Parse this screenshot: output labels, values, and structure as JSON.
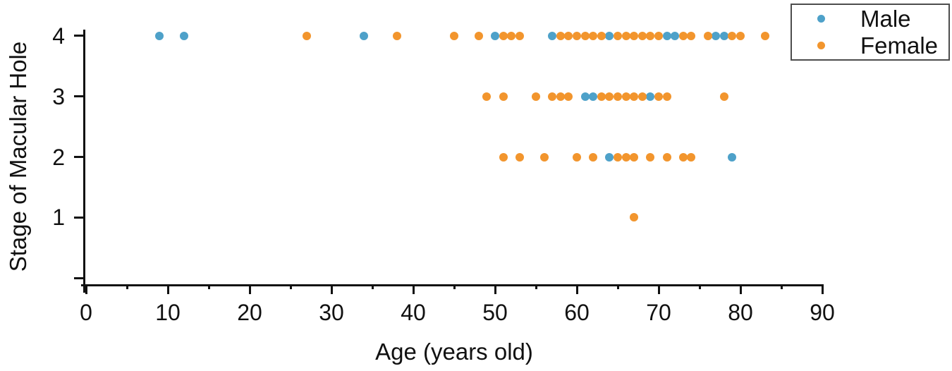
{
  "chart_data": {
    "type": "scatter",
    "title": "",
    "xlabel": "Age (years old)",
    "ylabel": "Stage of Macular Hole",
    "xlim": [
      0,
      90
    ],
    "ylim": [
      -0.1,
      4.1
    ],
    "xticks_major": [
      0,
      10,
      20,
      30,
      40,
      50,
      60,
      70,
      80,
      90
    ],
    "xticks_minor": [
      5,
      15,
      25,
      35,
      45,
      55,
      65,
      75,
      85
    ],
    "yticks": [
      1,
      2,
      3,
      4
    ],
    "yticks_unlabeled": [
      0
    ],
    "grid": false,
    "legend_position": "top-right",
    "axis_color": "#111111",
    "series": [
      {
        "name": "Male",
        "color": "#4EA1C9",
        "points": [
          [
            9,
            4
          ],
          [
            12,
            4
          ],
          [
            34,
            4
          ],
          [
            50,
            4
          ],
          [
            57,
            4
          ],
          [
            64,
            4
          ],
          [
            71,
            4
          ],
          [
            72,
            4
          ],
          [
            77,
            4
          ],
          [
            78,
            4
          ],
          [
            61,
            3
          ],
          [
            62,
            3
          ],
          [
            69,
            3
          ],
          [
            64,
            2
          ],
          [
            79,
            2
          ]
        ]
      },
      {
        "name": "Female",
        "color": "#F2952D",
        "points": [
          [
            27,
            4
          ],
          [
            38,
            4
          ],
          [
            45,
            4
          ],
          [
            48,
            4
          ],
          [
            51,
            4
          ],
          [
            52,
            4
          ],
          [
            53,
            4
          ],
          [
            58,
            4
          ],
          [
            59,
            4
          ],
          [
            60,
            4
          ],
          [
            61,
            4
          ],
          [
            62,
            4
          ],
          [
            63,
            4
          ],
          [
            65,
            4
          ],
          [
            66,
            4
          ],
          [
            67,
            4
          ],
          [
            68,
            4
          ],
          [
            69,
            4
          ],
          [
            70,
            4
          ],
          [
            73,
            4
          ],
          [
            74,
            4
          ],
          [
            76,
            4
          ],
          [
            79,
            4
          ],
          [
            80,
            4
          ],
          [
            83,
            4
          ],
          [
            49,
            3
          ],
          [
            51,
            3
          ],
          [
            55,
            3
          ],
          [
            57,
            3
          ],
          [
            58,
            3
          ],
          [
            59,
            3
          ],
          [
            63,
            3
          ],
          [
            64,
            3
          ],
          [
            65,
            3
          ],
          [
            66,
            3
          ],
          [
            67,
            3
          ],
          [
            68,
            3
          ],
          [
            70,
            3
          ],
          [
            71,
            3
          ],
          [
            78,
            3
          ],
          [
            51,
            2
          ],
          [
            53,
            2
          ],
          [
            56,
            2
          ],
          [
            60,
            2
          ],
          [
            62,
            2
          ],
          [
            65,
            2
          ],
          [
            66,
            2
          ],
          [
            67,
            2
          ],
          [
            69,
            2
          ],
          [
            71,
            2
          ],
          [
            73,
            2
          ],
          [
            74,
            2
          ],
          [
            67,
            1
          ]
        ]
      }
    ]
  }
}
